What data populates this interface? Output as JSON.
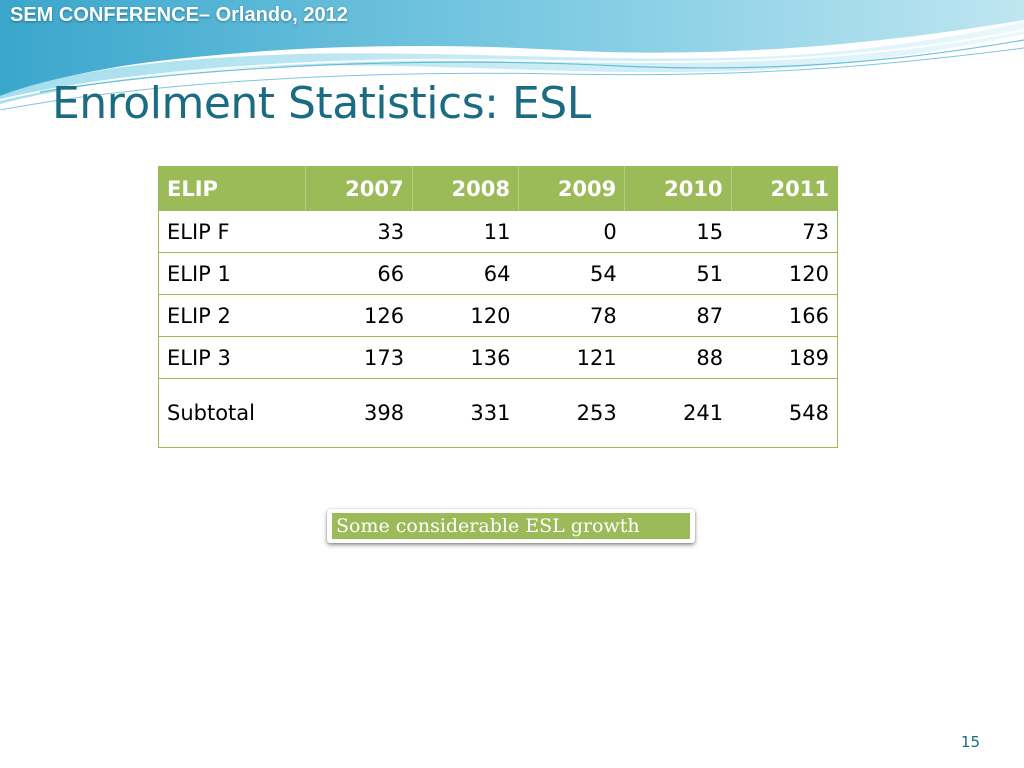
{
  "header": {
    "conference_label": "SEM CONFERENCE– Orlando, 2012",
    "accent_color": "#1b6b83",
    "wave_color": "#4fb3d2"
  },
  "slide": {
    "title": "Enrolment Statistics: ESL",
    "page_number": "15"
  },
  "table": {
    "header_color": "#9bbb59",
    "columns": [
      "ELIP",
      "2007",
      "2008",
      "2009",
      "2010",
      "2011"
    ],
    "rows": [
      [
        "ELIP F",
        "33",
        "11",
        "0",
        "15",
        "73"
      ],
      [
        "ELIP 1",
        "66",
        "64",
        "54",
        "51",
        "120"
      ],
      [
        "ELIP 2",
        "126",
        "120",
        "78",
        "87",
        "166"
      ],
      [
        "ELIP 3",
        "173",
        "136",
        "121",
        "88",
        "189"
      ],
      [
        "Subtotal",
        "398",
        "331",
        "253",
        "241",
        "548"
      ]
    ]
  },
  "note": {
    "text": "Some considerable ESL growth"
  }
}
